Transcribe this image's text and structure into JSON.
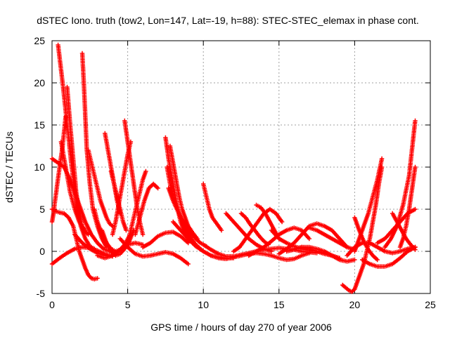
{
  "chart_data": {
    "type": "scatter",
    "title": "dSTEC Iono. truth (tow2, Lon=147, Lat=-19, h=88): STEC-STEC_elemax in phase cont.",
    "xlabel": "GPS time / hours of day 270 of year 2006",
    "ylabel": "dSTEC  / TECUs",
    "xlim": [
      0,
      25
    ],
    "ylim": [
      -5,
      25
    ],
    "xticks": [
      0,
      5,
      10,
      15,
      20,
      25
    ],
    "yticks": [
      -5,
      0,
      5,
      10,
      15,
      20,
      25
    ],
    "grid": true,
    "marker": "plus",
    "color": "#ff0000",
    "series": [
      {
        "x": [
          0.4,
          0.7,
          1.0,
          1.3,
          1.6,
          1.9,
          2.2,
          2.5,
          2.8
        ],
        "y": [
          24.5,
          20,
          15,
          10,
          6,
          3,
          1.5,
          0.6,
          0.3
        ]
      },
      {
        "x": [
          1.0,
          1.2,
          1.4,
          1.6,
          1.8,
          2.0,
          2.2
        ],
        "y": [
          19.5,
          15,
          11,
          7,
          4.5,
          3,
          2.5
        ]
      },
      {
        "x": [
          0.6,
          0.8,
          1.0,
          1.2,
          1.5,
          1.8,
          2.1,
          2.4
        ],
        "y": [
          13,
          11,
          9,
          7,
          5,
          3.5,
          2.5,
          2
        ]
      },
      {
        "x": [
          0.0,
          0.1,
          0.2,
          0.35,
          0.5,
          0.7,
          0.9
        ],
        "y": [
          3.5,
          4.5,
          6,
          8,
          10,
          12.5,
          16
        ]
      },
      {
        "x": [
          0.0,
          0.4,
          0.8,
          1.2,
          1.6,
          1.9,
          2.2,
          2.6,
          3.0,
          3.4,
          3.8
        ],
        "y": [
          11,
          10.5,
          10,
          8.5,
          6.5,
          5,
          3.5,
          2,
          1,
          0.3,
          0
        ]
      },
      {
        "x": [
          0.0,
          0.2,
          0.5,
          0.8,
          1.1,
          1.4,
          1.6,
          1.8,
          2.0,
          2.2,
          2.4,
          2.6,
          2.8,
          3.0
        ],
        "y": [
          5,
          4.8,
          4.6,
          4.5,
          4,
          3,
          1.5,
          0,
          -1,
          -2,
          -2.8,
          -3.2,
          -3.3,
          -3.2
        ]
      },
      {
        "x": [
          0.0,
          0.5,
          1.0,
          1.5,
          2.0,
          2.5,
          3.0,
          3.5,
          4.0
        ],
        "y": [
          -1.5,
          -0.8,
          -0.2,
          0.3,
          0.5,
          0.4,
          0.1,
          -0.3,
          -0.6
        ]
      },
      {
        "x": [
          2.0,
          2.1,
          2.2,
          2.3,
          2.5,
          2.7,
          3.0,
          3.3,
          3.6
        ],
        "y": [
          23.5,
          20,
          16,
          12,
          8,
          5,
          3,
          1.5,
          0.5
        ]
      },
      {
        "x": [
          2.4,
          2.6,
          2.8,
          3.0,
          3.2,
          3.4,
          3.6,
          3.8,
          4.0
        ],
        "y": [
          12,
          10.5,
          9,
          7.5,
          6,
          5,
          4,
          3.3,
          3
        ]
      },
      {
        "x": [
          1.5,
          2.0,
          2.5,
          3.0,
          3.5,
          3.8,
          4.0
        ],
        "y": [
          2,
          1,
          0.3,
          -0.2,
          -0.5,
          -0.6,
          -0.5
        ]
      },
      {
        "x": [
          3.5,
          3.7,
          3.9,
          4.1,
          4.3,
          4.5
        ],
        "y": [
          14,
          12,
          10,
          8,
          6,
          4.5
        ]
      },
      {
        "x": [
          3.9,
          4.1,
          4.3,
          4.5,
          4.7,
          4.9
        ],
        "y": [
          9.5,
          8,
          6.5,
          5,
          3.5,
          2.5
        ]
      },
      {
        "x": [
          2.8,
          3.0,
          3.3,
          3.6,
          3.9,
          4.2,
          4.5,
          4.8,
          5.1
        ],
        "y": [
          5,
          3.5,
          2,
          1,
          0.3,
          0,
          0.2,
          0.8,
          1.8
        ]
      },
      {
        "x": [
          3.0,
          3.5,
          4.0,
          4.5,
          5.0,
          5.5,
          6.0
        ],
        "y": [
          -0.5,
          -0.8,
          -0.5,
          0.2,
          0.8,
          1,
          0.8
        ]
      },
      {
        "x": [
          3.3,
          3.6,
          3.9,
          4.2,
          4.5,
          4.8,
          5.1,
          5.4
        ],
        "y": [
          2.5,
          1,
          0,
          -0.5,
          -0.3,
          0.3,
          1.2,
          2.5
        ]
      },
      {
        "x": [
          4.8,
          5.0,
          5.2,
          5.4,
          5.6,
          5.8,
          6.0
        ],
        "y": [
          15.5,
          13,
          10.5,
          8,
          5.5,
          3.5,
          2
        ]
      },
      {
        "x": [
          4.0,
          4.2,
          4.4,
          4.6,
          4.8,
          5.0,
          5.2
        ],
        "y": [
          2,
          3.5,
          5.5,
          7.5,
          9.5,
          11.5,
          13
        ]
      },
      {
        "x": [
          5.0,
          5.2,
          5.4,
          5.6,
          5.8,
          6.0,
          6.2
        ],
        "y": [
          1,
          2.5,
          4,
          5.5,
          7,
          8.5,
          9.5
        ]
      },
      {
        "x": [
          4.5,
          5.0,
          5.5,
          6.0,
          6.5,
          7.0,
          7.5,
          8.0,
          8.5,
          9.0
        ],
        "y": [
          1.5,
          0.5,
          -0.3,
          -0.6,
          -0.5,
          -0.3,
          -0.1,
          -0.3,
          -0.8,
          -1.5
        ]
      },
      {
        "x": [
          5.5,
          5.8,
          6.1,
          6.4,
          6.7,
          7.0
        ],
        "y": [
          2,
          4,
          6,
          7.5,
          8,
          7.5
        ]
      },
      {
        "x": [
          6.0,
          6.5,
          7.0,
          7.5,
          8.0,
          8.5,
          9.0
        ],
        "y": [
          0.5,
          1,
          1.8,
          2.2,
          2.3,
          1.8,
          1
        ]
      },
      {
        "x": [
          7.5,
          7.7,
          7.9,
          8.1,
          8.3,
          8.5,
          8.7,
          9.0,
          9.3
        ],
        "y": [
          13.5,
          11,
          9,
          7,
          5,
          3.5,
          2.5,
          1.5,
          1
        ]
      },
      {
        "x": [
          7.8,
          8.0,
          8.2,
          8.4,
          8.6,
          8.8,
          9.0,
          9.3,
          9.6
        ],
        "y": [
          12.5,
          10.5,
          8.5,
          6.5,
          5,
          4,
          3,
          2.2,
          1.5
        ]
      },
      {
        "x": [
          7.6,
          7.8,
          8.0,
          8.3,
          8.6,
          8.9,
          9.2,
          9.5,
          9.8,
          10.0
        ],
        "y": [
          10,
          8,
          6.5,
          5,
          3.5,
          2.5,
          1.5,
          0.8,
          0.3,
          0
        ]
      },
      {
        "x": [
          7.7,
          8.0,
          8.3,
          8.6,
          8.9,
          9.2,
          9.5,
          9.8,
          10.2
        ],
        "y": [
          7.5,
          6,
          4.8,
          3.8,
          3,
          2.2,
          1.5,
          1,
          0.6
        ]
      },
      {
        "x": [
          8.0,
          8.5,
          9.0,
          9.5,
          10.0,
          10.5,
          11.0,
          11.5,
          12.0
        ],
        "y": [
          3.5,
          2.5,
          1.5,
          0.6,
          0,
          -0.5,
          -0.7,
          -0.8,
          -0.8
        ]
      },
      {
        "x": [
          10.0,
          10.2,
          10.4,
          10.6,
          10.8,
          11.0,
          11.2
        ],
        "y": [
          8,
          6.5,
          5,
          4,
          3.5,
          3,
          2.5
        ]
      },
      {
        "x": [
          10.0,
          10.5,
          11.0,
          11.5,
          12.0,
          12.5,
          13.0,
          13.5,
          14.0,
          14.5,
          15.0,
          15.5,
          16.0,
          16.5,
          17.0,
          17.5
        ],
        "y": [
          0.8,
          0.2,
          -0.3,
          -0.6,
          -0.6,
          -0.4,
          -0.2,
          0,
          0.2,
          0.3,
          0.4,
          0.3,
          0.2,
          0,
          -0.1,
          -0.2
        ]
      },
      {
        "x": [
          10.5,
          11.0,
          11.5,
          12.0,
          12.5,
          13.0,
          13.5,
          14.0,
          14.5,
          15.0,
          15.5,
          16.0,
          16.5,
          17.0
        ],
        "y": [
          -0.5,
          -0.8,
          -0.9,
          -0.7,
          -0.5,
          -0.3,
          -0.2,
          -0.3,
          -0.5,
          -0.8,
          -1,
          -0.9,
          -0.5,
          -0.2
        ]
      },
      {
        "x": [
          11.5,
          12.0,
          12.5,
          13.0,
          13.5,
          14.0,
          14.5
        ],
        "y": [
          4.5,
          3.5,
          2.5,
          1.5,
          0.8,
          0.3,
          0
        ]
      },
      {
        "x": [
          12.0,
          12.4,
          12.8,
          13.2,
          13.6,
          14.0,
          14.4,
          14.8,
          15.2
        ],
        "y": [
          0,
          0.5,
          1.5,
          2.5,
          3.5,
          4.5,
          5,
          4.5,
          3.5
        ]
      },
      {
        "x": [
          12.5,
          12.8,
          13.1,
          13.4,
          13.7,
          14.0,
          14.3
        ],
        "y": [
          4.5,
          4,
          3.2,
          2.5,
          1.8,
          1.2,
          0.8
        ]
      },
      {
        "x": [
          13.0,
          13.5,
          14.0,
          14.5,
          15.0,
          15.5,
          16.0,
          16.5,
          17.0
        ],
        "y": [
          -0.5,
          0,
          0.5,
          1.2,
          2,
          2.5,
          2.8,
          2.5,
          1.5
        ]
      },
      {
        "x": [
          13.5,
          13.8,
          14.1,
          14.4,
          14.7,
          15.0
        ],
        "y": [
          5.5,
          5.2,
          4.5,
          3.5,
          2.5,
          1.5
        ]
      },
      {
        "x": [
          14.5,
          15.0,
          15.5,
          16.0,
          16.5,
          17.0,
          17.5,
          18.0,
          18.5,
          19.0
        ],
        "y": [
          2.5,
          1.5,
          1,
          0.6,
          0.3,
          0.1,
          0,
          -0.2,
          -0.5,
          -0.8
        ]
      },
      {
        "x": [
          15.0,
          15.5,
          16.0,
          16.5,
          17.0,
          17.5,
          18.0,
          18.5,
          19.0,
          19.5
        ],
        "y": [
          -0.3,
          0.3,
          1,
          2,
          3,
          3.3,
          3,
          2.5,
          1.5,
          0.5
        ]
      },
      {
        "x": [
          16.0,
          16.5,
          17.0,
          17.5,
          18.0,
          18.5,
          19.0,
          19.5,
          20.0
        ],
        "y": [
          0.3,
          0.5,
          0.5,
          0.3,
          0,
          -0.5,
          -1,
          -1.2,
          -1
        ]
      },
      {
        "x": [
          17.0,
          17.5,
          18.0,
          18.5,
          19.0,
          19.5,
          20.0
        ],
        "y": [
          2.8,
          2.5,
          2,
          1.5,
          1,
          0.5,
          0.2
        ]
      },
      {
        "x": [
          15.5,
          16.0,
          16.5,
          17.0,
          17.5,
          18.0,
          18.5,
          19.0
        ],
        "y": [
          0,
          0.2,
          0.5,
          0.3,
          0,
          -0.3,
          -0.5,
          -0.8
        ]
      },
      {
        "x": [
          19.2,
          19.4,
          19.6,
          19.8,
          20.0,
          20.2,
          20.4,
          20.6,
          20.8,
          21.0,
          21.2,
          21.4,
          21.6,
          21.8
        ],
        "y": [
          -4,
          -4.3,
          -4.6,
          -4.8,
          -4.5,
          -3.5,
          -2.5,
          -1.5,
          0,
          1.5,
          3.5,
          5.5,
          8,
          10
        ]
      },
      {
        "x": [
          20.0,
          20.3,
          20.6,
          20.9,
          21.2,
          21.5,
          21.8
        ],
        "y": [
          0,
          1.5,
          3,
          4.5,
          6.5,
          8.5,
          11
        ]
      },
      {
        "x": [
          19.5,
          20.0,
          20.5,
          21.0,
          21.5,
          22.0,
          22.5,
          23.0,
          23.5,
          24.0
        ],
        "y": [
          -0.5,
          0.5,
          1,
          1,
          0.5,
          0,
          -0.2,
          0,
          0.3,
          0.5
        ]
      },
      {
        "x": [
          20.0,
          20.3,
          20.6,
          20.9,
          21.2,
          21.5
        ],
        "y": [
          4,
          2.5,
          1.2,
          0.2,
          -0.5,
          -1
        ]
      },
      {
        "x": [
          20.5,
          21.0,
          21.5,
          22.0,
          22.5,
          23.0,
          23.5,
          24.0
        ],
        "y": [
          -1,
          -1.5,
          -1.8,
          -1.8,
          -1.5,
          -0.8,
          0,
          0.5
        ]
      },
      {
        "x": [
          21.5,
          22.0,
          22.5,
          23.0,
          23.5,
          24.0
        ],
        "y": [
          1,
          1.5,
          2.5,
          3.5,
          4.5,
          5
        ]
      },
      {
        "x": [
          22.0,
          22.4,
          22.8,
          23.2,
          23.6,
          24.0
        ],
        "y": [
          0.5,
          1.5,
          3,
          5.5,
          9,
          15.5
        ]
      },
      {
        "x": [
          22.5,
          22.8,
          23.1,
          23.4,
          23.7,
          24.0
        ],
        "y": [
          4.5,
          3.5,
          2.5,
          1.5,
          0.8,
          0.2
        ]
      },
      {
        "x": [
          23.0,
          23.2,
          23.4,
          23.6,
          23.8,
          24.0
        ],
        "y": [
          0.5,
          1.5,
          3,
          5,
          7.5,
          10
        ]
      }
    ]
  }
}
